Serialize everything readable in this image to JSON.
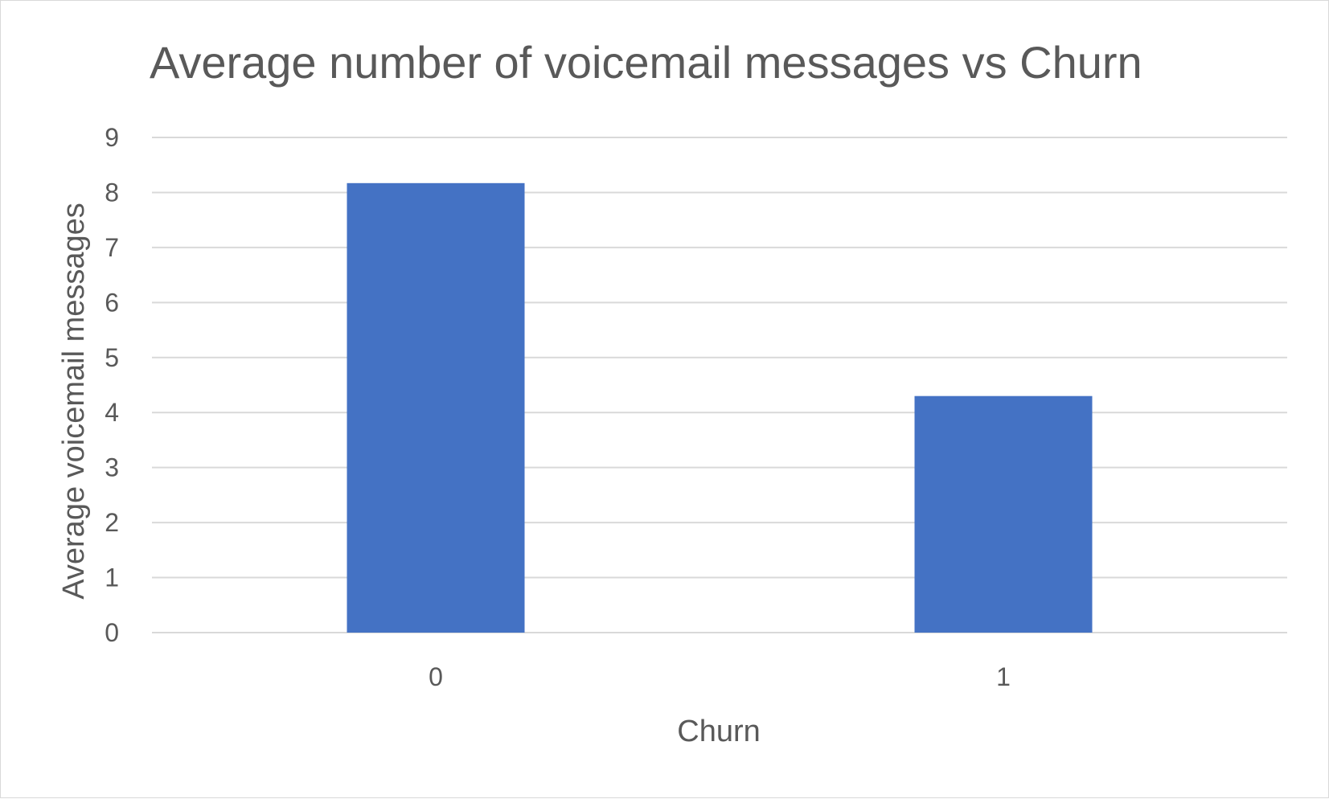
{
  "chart_data": {
    "type": "bar",
    "title": "Average number of voicemail messages vs Churn",
    "xlabel": "Churn",
    "ylabel": "Average voicemail messages",
    "categories": [
      "0",
      "1"
    ],
    "values": [
      8.17,
      4.3
    ],
    "ylim": [
      0,
      9
    ],
    "yticks": [
      "0",
      "1",
      "2",
      "3",
      "4",
      "5",
      "6",
      "7",
      "8",
      "9"
    ],
    "grid": true,
    "legend": "none",
    "bar_color": "#4472c4"
  }
}
